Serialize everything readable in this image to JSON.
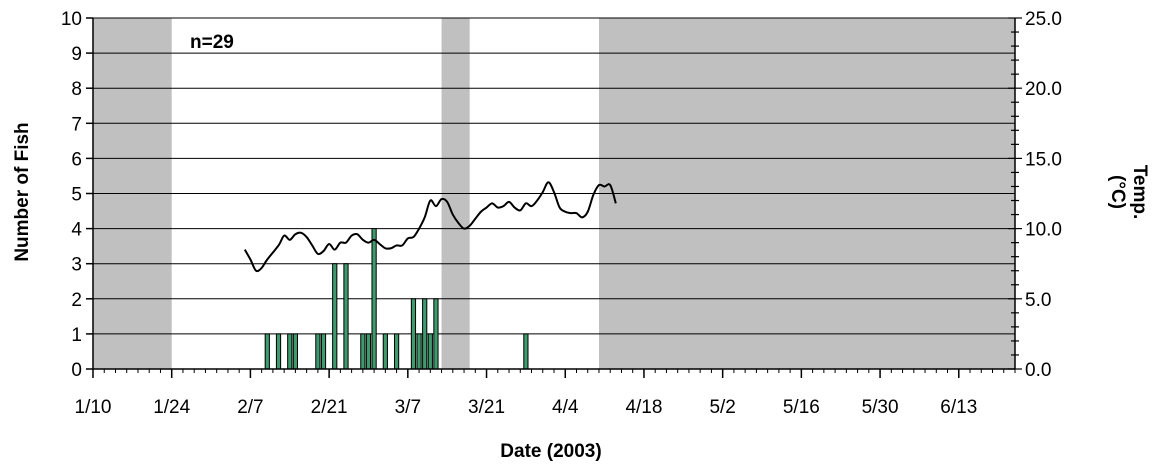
{
  "chart_data": {
    "type": "bar",
    "annotation": "n=29",
    "xlabel": "Date (2003)",
    "ylabel": "Number of Fish",
    "y2label": "Temp. (°C)",
    "y2label_parts": [
      "Temp.",
      "(°C)"
    ],
    "year": 2003,
    "xlim": [
      "2003-01-10",
      "2003-06-23"
    ],
    "ylim": [
      0,
      10
    ],
    "y2lim": [
      0,
      25
    ],
    "x_ticks": [
      "1/10",
      "1/24",
      "2/7",
      "2/21",
      "3/7",
      "3/21",
      "4/4",
      "4/18",
      "5/2",
      "5/16",
      "5/30",
      "6/13"
    ],
    "x_tick_dates": [
      "2003-01-10",
      "2003-01-24",
      "2003-02-07",
      "2003-02-21",
      "2003-03-07",
      "2003-03-21",
      "2003-04-04",
      "2003-04-18",
      "2003-05-02",
      "2003-05-16",
      "2003-05-30",
      "2003-06-13"
    ],
    "y_ticks": [
      "0",
      "1",
      "2",
      "3",
      "4",
      "5",
      "6",
      "7",
      "8",
      "9",
      "10"
    ],
    "y2_ticks": [
      "0.0",
      "5.0",
      "10.0",
      "15.0",
      "20.0",
      "25.0"
    ],
    "shaded_periods": [
      {
        "start": "2003-01-10",
        "end": "2003-01-23"
      },
      {
        "start": "2003-03-13",
        "end": "2003-03-17"
      },
      {
        "start": "2003-04-10",
        "end": "2003-06-23"
      }
    ],
    "series": [
      {
        "type": "bar",
        "axis": "left",
        "color": "#3e9b6e",
        "points": [
          {
            "x": "2003-02-10",
            "y": 1
          },
          {
            "x": "2003-02-12",
            "y": 1
          },
          {
            "x": "2003-02-14",
            "y": 1
          },
          {
            "x": "2003-02-15",
            "y": 1
          },
          {
            "x": "2003-02-19",
            "y": 1
          },
          {
            "x": "2003-02-20",
            "y": 1
          },
          {
            "x": "2003-02-22",
            "y": 3
          },
          {
            "x": "2003-02-24",
            "y": 3
          },
          {
            "x": "2003-02-27",
            "y": 1
          },
          {
            "x": "2003-02-28",
            "y": 1
          },
          {
            "x": "2003-03-01",
            "y": 4
          },
          {
            "x": "2003-03-03",
            "y": 1
          },
          {
            "x": "2003-03-05",
            "y": 1
          },
          {
            "x": "2003-03-08",
            "y": 2
          },
          {
            "x": "2003-03-09",
            "y": 1
          },
          {
            "x": "2003-03-10",
            "y": 2
          },
          {
            "x": "2003-03-11",
            "y": 1
          },
          {
            "x": "2003-03-12",
            "y": 2
          },
          {
            "x": "2003-03-28",
            "y": 1
          }
        ]
      },
      {
        "type": "line",
        "axis": "right",
        "color": "#000000",
        "points": [
          {
            "x": "2003-02-06",
            "y": 8.5
          },
          {
            "x": "2003-02-07",
            "y": 7.8
          },
          {
            "x": "2003-02-08",
            "y": 7.0
          },
          {
            "x": "2003-02-09",
            "y": 7.2
          },
          {
            "x": "2003-02-10",
            "y": 7.8
          },
          {
            "x": "2003-02-12",
            "y": 8.8
          },
          {
            "x": "2003-02-13",
            "y": 9.5
          },
          {
            "x": "2003-02-14",
            "y": 9.2
          },
          {
            "x": "2003-02-15",
            "y": 9.6
          },
          {
            "x": "2003-02-16",
            "y": 9.7
          },
          {
            "x": "2003-02-17",
            "y": 9.4
          },
          {
            "x": "2003-02-18",
            "y": 8.8
          },
          {
            "x": "2003-02-19",
            "y": 8.2
          },
          {
            "x": "2003-02-20",
            "y": 8.4
          },
          {
            "x": "2003-02-21",
            "y": 8.9
          },
          {
            "x": "2003-02-22",
            "y": 8.5
          },
          {
            "x": "2003-02-23",
            "y": 9.0
          },
          {
            "x": "2003-02-24",
            "y": 9.0
          },
          {
            "x": "2003-02-25",
            "y": 9.5
          },
          {
            "x": "2003-02-26",
            "y": 9.6
          },
          {
            "x": "2003-02-27",
            "y": 9.2
          },
          {
            "x": "2003-02-28",
            "y": 9.0
          },
          {
            "x": "2003-03-01",
            "y": 9.2
          },
          {
            "x": "2003-03-02",
            "y": 8.9
          },
          {
            "x": "2003-03-03",
            "y": 8.6
          },
          {
            "x": "2003-03-04",
            "y": 8.6
          },
          {
            "x": "2003-03-05",
            "y": 8.8
          },
          {
            "x": "2003-03-06",
            "y": 8.8
          },
          {
            "x": "2003-03-07",
            "y": 9.3
          },
          {
            "x": "2003-03-08",
            "y": 9.4
          },
          {
            "x": "2003-03-09",
            "y": 10.0
          },
          {
            "x": "2003-03-10",
            "y": 10.8
          },
          {
            "x": "2003-03-11",
            "y": 12.0
          },
          {
            "x": "2003-03-12",
            "y": 11.6
          },
          {
            "x": "2003-03-13",
            "y": 12.1
          },
          {
            "x": "2003-03-14",
            "y": 11.9
          },
          {
            "x": "2003-03-15",
            "y": 11.0
          },
          {
            "x": "2003-03-16",
            "y": 10.4
          },
          {
            "x": "2003-03-17",
            "y": 10.0
          },
          {
            "x": "2003-03-18",
            "y": 10.2
          },
          {
            "x": "2003-03-19",
            "y": 10.7
          },
          {
            "x": "2003-03-20",
            "y": 11.2
          },
          {
            "x": "2003-03-21",
            "y": 11.5
          },
          {
            "x": "2003-03-22",
            "y": 11.8
          },
          {
            "x": "2003-03-23",
            "y": 11.5
          },
          {
            "x": "2003-03-24",
            "y": 11.6
          },
          {
            "x": "2003-03-25",
            "y": 11.9
          },
          {
            "x": "2003-03-26",
            "y": 11.5
          },
          {
            "x": "2003-03-27",
            "y": 11.3
          },
          {
            "x": "2003-03-28",
            "y": 11.8
          },
          {
            "x": "2003-03-29",
            "y": 11.6
          },
          {
            "x": "2003-03-30",
            "y": 12.0
          },
          {
            "x": "2003-03-31",
            "y": 12.6
          },
          {
            "x": "2003-04-01",
            "y": 13.3
          },
          {
            "x": "2003-04-02",
            "y": 12.6
          },
          {
            "x": "2003-04-03",
            "y": 11.5
          },
          {
            "x": "2003-04-04",
            "y": 11.2
          },
          {
            "x": "2003-04-05",
            "y": 11.1
          },
          {
            "x": "2003-04-06",
            "y": 11.1
          },
          {
            "x": "2003-04-07",
            "y": 10.8
          },
          {
            "x": "2003-04-08",
            "y": 11.2
          },
          {
            "x": "2003-04-09",
            "y": 12.4
          },
          {
            "x": "2003-04-10",
            "y": 13.1
          },
          {
            "x": "2003-04-11",
            "y": 13.0
          },
          {
            "x": "2003-04-12",
            "y": 13.1
          },
          {
            "x": "2003-04-13",
            "y": 11.8
          }
        ]
      }
    ],
    "grid": "horizontal",
    "legend": "none"
  }
}
